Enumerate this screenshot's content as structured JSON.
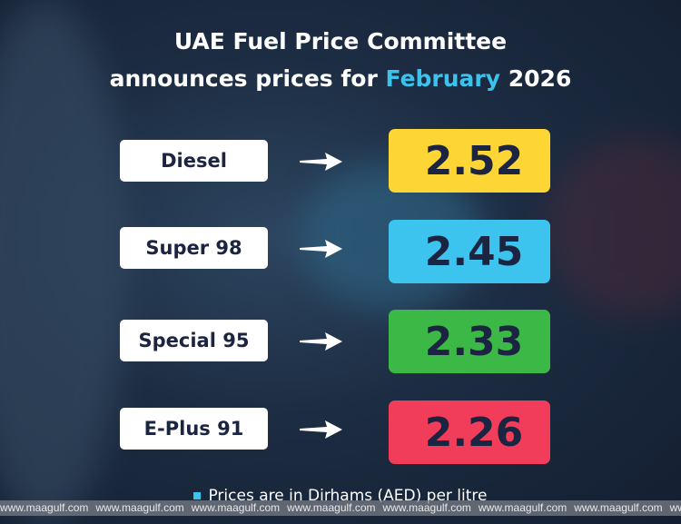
{
  "title": {
    "line1": "UAE Fuel Price Committee",
    "line2_prefix": "announces prices for",
    "month": "February",
    "year": "2026"
  },
  "colors": {
    "highlight": "#3bc3ee",
    "text_dark": "#1b2440"
  },
  "prices": [
    {
      "fuel": "Diesel",
      "price": "2.52",
      "color": "#fdd535"
    },
    {
      "fuel": "Super 98",
      "price": "2.45",
      "color": "#3cc4ee"
    },
    {
      "fuel": "Special 95",
      "price": "2.33",
      "color": "#3cb846"
    },
    {
      "fuel": "E-Plus 91",
      "price": "2.26",
      "color": "#f23d5a"
    }
  ],
  "note": "Prices are in Dirhams (AED) per litre",
  "watermark": "www.maagulf.com"
}
